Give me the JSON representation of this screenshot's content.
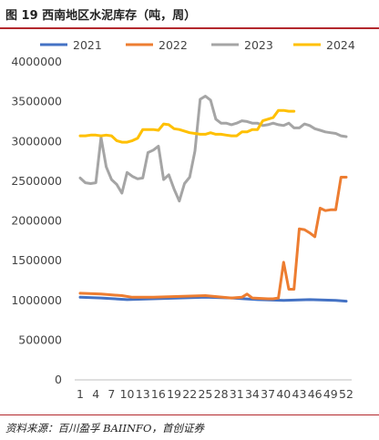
{
  "title": "图 19 西南地区水泥库存（吨，周）",
  "source": "资料来源：百川盈孚 BAIINFO，首创证券",
  "colors": {
    "accent_rule": "#b3282d"
  },
  "chart_data": {
    "type": "line",
    "title": "",
    "xlabel": "",
    "ylabel": "",
    "ylim": [
      0,
      4000000
    ],
    "yticks": [
      0,
      500000,
      1000000,
      1500000,
      2000000,
      2500000,
      3000000,
      3500000,
      4000000
    ],
    "ytick_labels": [
      "0",
      "500000",
      "1000000",
      "1500000",
      "2000000",
      "2500000",
      "3000000",
      "3500000",
      "4000000"
    ],
    "xlim": [
      1,
      52
    ],
    "xticks": [
      1,
      4,
      7,
      10,
      13,
      16,
      19,
      22,
      25,
      28,
      31,
      34,
      37,
      40,
      43,
      46,
      49,
      52
    ],
    "xtick_labels": [
      "1",
      "4",
      "7",
      "10",
      "13",
      "16",
      "19",
      "22",
      "25",
      "28",
      "31",
      "34",
      "37",
      "40",
      "43",
      "46",
      "49",
      "52"
    ],
    "grid": false,
    "legend_position": "top",
    "series": [
      {
        "name": "2021",
        "color": "#4472c4",
        "x": [
          1,
          5,
          10,
          15,
          20,
          25,
          30,
          35,
          40,
          45,
          50,
          52
        ],
        "y": [
          1040000,
          1030000,
          1010000,
          1020000,
          1030000,
          1040000,
          1030000,
          1010000,
          1000000,
          1010000,
          1000000,
          990000
        ]
      },
      {
        "name": "2022",
        "color": "#ed7d31",
        "x": [
          1,
          5,
          9,
          11,
          15,
          20,
          25,
          30,
          32,
          33,
          34,
          37,
          38,
          39,
          40,
          41,
          42,
          43,
          44,
          45,
          46,
          47,
          48,
          49,
          50,
          51,
          52
        ],
        "y": [
          1090000,
          1080000,
          1060000,
          1040000,
          1040000,
          1050000,
          1060000,
          1030000,
          1040000,
          1080000,
          1030000,
          1020000,
          1020000,
          1030000,
          1480000,
          1140000,
          1140000,
          1900000,
          1890000,
          1850000,
          1800000,
          2160000,
          2130000,
          2140000,
          2140000,
          2550000,
          2550000
        ]
      },
      {
        "name": "2023",
        "color": "#a5a5a5",
        "x": [
          1,
          2,
          3,
          4,
          5,
          6,
          7,
          8,
          9,
          10,
          11,
          12,
          13,
          14,
          15,
          16,
          17,
          18,
          19,
          20,
          21,
          22,
          23,
          24,
          25,
          26,
          27,
          28,
          29,
          30,
          31,
          32,
          33,
          34,
          35,
          36,
          37,
          38,
          39,
          40,
          41,
          42,
          43,
          44,
          45,
          46,
          47,
          48,
          49,
          50,
          51,
          52
        ],
        "y": [
          2540000,
          2480000,
          2470000,
          2480000,
          3050000,
          2680000,
          2520000,
          2460000,
          2350000,
          2610000,
          2560000,
          2530000,
          2540000,
          2860000,
          2890000,
          2940000,
          2520000,
          2580000,
          2400000,
          2250000,
          2470000,
          2550000,
          2880000,
          3530000,
          3570000,
          3520000,
          3280000,
          3230000,
          3230000,
          3210000,
          3230000,
          3260000,
          3250000,
          3230000,
          3230000,
          3200000,
          3210000,
          3230000,
          3210000,
          3200000,
          3230000,
          3170000,
          3170000,
          3220000,
          3200000,
          3160000,
          3140000,
          3120000,
          3110000,
          3100000,
          3070000,
          3060000
        ]
      },
      {
        "name": "2024",
        "color": "#ffc000",
        "x": [
          1,
          2,
          3,
          4,
          5,
          6,
          7,
          8,
          9,
          10,
          11,
          12,
          13,
          14,
          15,
          16,
          17,
          18,
          19,
          20,
          21,
          22,
          23,
          24,
          25,
          26,
          27,
          28,
          29,
          30,
          31,
          32,
          33,
          34,
          35,
          36,
          37,
          38,
          39,
          40,
          41,
          42
        ],
        "y": [
          3070000,
          3070000,
          3080000,
          3080000,
          3070000,
          3080000,
          3070000,
          3010000,
          2990000,
          2990000,
          3010000,
          3040000,
          3150000,
          3150000,
          3150000,
          3140000,
          3220000,
          3210000,
          3160000,
          3150000,
          3130000,
          3110000,
          3100000,
          3090000,
          3090000,
          3110000,
          3090000,
          3090000,
          3080000,
          3070000,
          3070000,
          3120000,
          3120000,
          3150000,
          3150000,
          3260000,
          3280000,
          3300000,
          3390000,
          3390000,
          3380000,
          3380000
        ]
      }
    ]
  }
}
